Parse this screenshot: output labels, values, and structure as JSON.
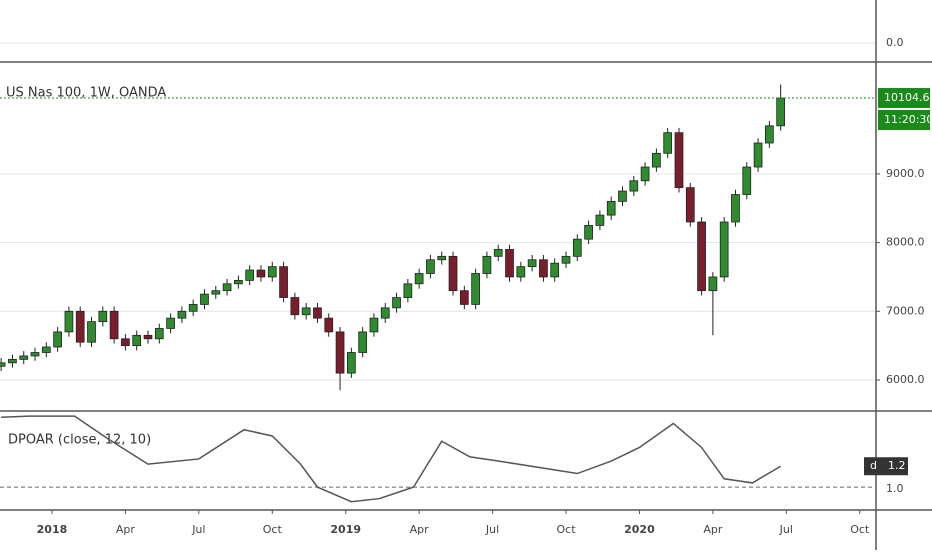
{
  "chart_data": [
    {
      "type": "candlestick",
      "title": "US Nas 100, 1W, OANDA",
      "color_up": "#2e8b2e",
      "color_down": "#7a1e2e",
      "x": [
        -9,
        -7,
        -5,
        -3,
        -1,
        1,
        3,
        5,
        7,
        9,
        11,
        13,
        15,
        17,
        19,
        21,
        23,
        25,
        27,
        29,
        31,
        33,
        35,
        37,
        39,
        41,
        43,
        45,
        47,
        49,
        51,
        53,
        55,
        57,
        59,
        61,
        63,
        65,
        67,
        69,
        71,
        73,
        75,
        77,
        79,
        81,
        83,
        85,
        87,
        89,
        91,
        93,
        95,
        97,
        99,
        101,
        103,
        105,
        107,
        109,
        111,
        113,
        115,
        117,
        119,
        121,
        123,
        125,
        127,
        129
      ],
      "open": [
        6200,
        6250,
        6300,
        6350,
        6400,
        6480,
        6700,
        7000,
        6550,
        6850,
        7000,
        6600,
        6500,
        6650,
        6600,
        6750,
        6900,
        7000,
        7100,
        7250,
        7300,
        7400,
        7450,
        7600,
        7500,
        7650,
        7200,
        6950,
        7050,
        6900,
        6700,
        6100,
        6400,
        6700,
        6900,
        7050,
        7200,
        7400,
        7550,
        7750,
        7800,
        7300,
        7100,
        7550,
        7800,
        7900,
        7500,
        7650,
        7750,
        7500,
        7700,
        7800,
        8050,
        8250,
        8400,
        8600,
        8750,
        8900,
        9100,
        9300,
        9600,
        8800,
        8300,
        7300,
        7500,
        8300,
        8700,
        9100,
        9450,
        9700
      ],
      "high": [
        6320,
        6370,
        6420,
        6470,
        6550,
        6770,
        7070,
        7070,
        6920,
        7070,
        7070,
        6670,
        6720,
        6720,
        6820,
        6970,
        7070,
        7170,
        7320,
        7370,
        7470,
        7520,
        7670,
        7670,
        7720,
        7720,
        7270,
        7120,
        7120,
        6970,
        6770,
        6470,
        6770,
        6970,
        7120,
        7270,
        7470,
        7620,
        7820,
        7870,
        7870,
        7370,
        7620,
        7870,
        7970,
        7970,
        7720,
        7820,
        7820,
        7770,
        7870,
        8120,
        8320,
        8470,
        8670,
        8820,
        8970,
        9170,
        9370,
        9670,
        9670,
        8870,
        8370,
        7570,
        8370,
        8770,
        9170,
        9520,
        9770,
        10300
      ],
      "low": [
        6130,
        6180,
        6230,
        6280,
        6330,
        6410,
        6630,
        6480,
        6480,
        6780,
        6530,
        6430,
        6430,
        6530,
        6530,
        6680,
        6830,
        6930,
        7030,
        7180,
        7230,
        7330,
        7380,
        7430,
        7430,
        7130,
        6880,
        6880,
        6830,
        6630,
        5850,
        6030,
        6330,
        6630,
        6830,
        6980,
        7130,
        7330,
        7480,
        7680,
        7230,
        7030,
        7030,
        7480,
        7730,
        7430,
        7430,
        7580,
        7430,
        7430,
        7630,
        7730,
        7980,
        8180,
        8330,
        8530,
        8680,
        8830,
        9030,
        9230,
        8730,
        8230,
        7230,
        6650,
        7430,
        8230,
        8630,
        9030,
        9380,
        9630
      ],
      "close": [
        6250,
        6300,
        6350,
        6400,
        6480,
        6700,
        7000,
        6550,
        6850,
        7000,
        6600,
        6500,
        6650,
        6600,
        6750,
        6900,
        7000,
        7100,
        7250,
        7300,
        7400,
        7450,
        7600,
        7500,
        7650,
        7200,
        6950,
        7050,
        6900,
        6700,
        6100,
        6400,
        6700,
        6900,
        7050,
        7200,
        7400,
        7550,
        7750,
        7800,
        7300,
        7100,
        7550,
        7800,
        7900,
        7500,
        7650,
        7750,
        7500,
        7700,
        7800,
        8050,
        8250,
        8400,
        8600,
        8750,
        8900,
        9100,
        9300,
        9600,
        8800,
        8300,
        7300,
        7500,
        8300,
        8700,
        9100,
        9450,
        9700,
        10104.6
      ],
      "last_price": 10104.6,
      "countdown": "11:20:30",
      "xlim": [
        -9.2,
        145.7
      ],
      "xticks": [
        {
          "value": 0,
          "label": "2018"
        },
        {
          "value": 13,
          "label": "Apr"
        },
        {
          "value": 26,
          "label": "Jul"
        },
        {
          "value": 39,
          "label": "Oct"
        },
        {
          "value": 52,
          "label": "2019"
        },
        {
          "value": 65,
          "label": "Apr"
        },
        {
          "value": 78,
          "label": "Jul"
        },
        {
          "value": 91,
          "label": "Oct"
        },
        {
          "value": 104,
          "label": "2020"
        },
        {
          "value": 117,
          "label": "Apr"
        },
        {
          "value": 130,
          "label": "Jul"
        },
        {
          "value": 143,
          "label": "Oct"
        }
      ],
      "ylim": [
        5563,
        10629
      ],
      "yticks": [
        {
          "value": 6000,
          "label": "6000.0"
        },
        {
          "value": 7000,
          "label": "7000.0"
        },
        {
          "value": 8000,
          "label": "8000.0"
        },
        {
          "value": 9000,
          "label": "9000.0"
        }
      ],
      "grid": true,
      "top_pane_yticks": [
        {
          "value": 0,
          "label": "0.0"
        }
      ]
    },
    {
      "type": "line",
      "title": "DPOAR (close, 12, 10)",
      "badge": "d",
      "color": "#555555",
      "x": [
        -9,
        -4,
        4,
        10,
        17,
        26,
        34,
        39,
        44,
        47,
        53,
        58,
        64,
        69,
        74,
        79,
        86,
        93,
        99,
        104,
        110,
        115,
        119,
        124,
        129
      ],
      "values": [
        1.67,
        1.68,
        1.68,
        1.46,
        1.22,
        1.27,
        1.55,
        1.49,
        1.22,
        1.0,
        0.86,
        0.89,
        1.0,
        1.44,
        1.29,
        1.25,
        1.19,
        1.13,
        1.25,
        1.38,
        1.61,
        1.38,
        1.08,
        1.04,
        1.2
      ],
      "xlim": [
        -9.2,
        145.7
      ],
      "ylim": [
        0.79,
        1.72
      ],
      "yticks": [
        {
          "value": 1.0,
          "label": "1.0"
        }
      ]
    }
  ]
}
